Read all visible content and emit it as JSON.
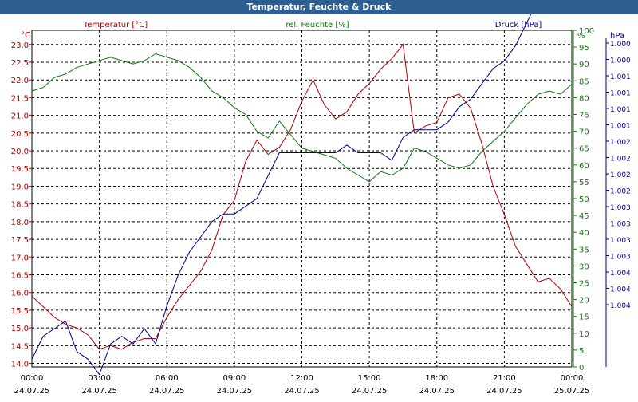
{
  "window": {
    "title": "Temperatur, Feuchte & Druck"
  },
  "colors": {
    "temperature": "#b00000",
    "humidity": "#0a7a0a",
    "pressure": "#000090",
    "grid": "#000000",
    "titlebar": "#2e5f93"
  },
  "chart_data": {
    "type": "line",
    "title": "Temperatur, Feuchte & Druck",
    "grid": true,
    "x_ticks": [
      {
        "time": "00:00",
        "date": "24.07.25"
      },
      {
        "time": "03:00",
        "date": "24.07.25"
      },
      {
        "time": "06:00",
        "date": "24.07.25"
      },
      {
        "time": "09:00",
        "date": "24.07.25"
      },
      {
        "time": "12:00",
        "date": "24.07.25"
      },
      {
        "time": "15:00",
        "date": "24.07.25"
      },
      {
        "time": "18:00",
        "date": "24.07.25"
      },
      {
        "time": "21:00",
        "date": "24.07.25"
      },
      {
        "time": "00:00",
        "date": "25.07.25"
      }
    ],
    "axes": {
      "temperature": {
        "label": "Temperatur [°C]",
        "unit": "°C",
        "range": [
          13.9,
          23.4
        ],
        "ticks": [
          "14.0",
          "14.5",
          "15.0",
          "15.5",
          "16.0",
          "16.5",
          "17.0",
          "17.5",
          "18.0",
          "18.5",
          "19.0",
          "19.5",
          "20.0",
          "20.5",
          "21.0",
          "21.5",
          "22.0",
          "22.5",
          "23.0"
        ]
      },
      "humidity": {
        "label": "rel. Feuchte [%]",
        "unit": "%",
        "range": [
          0,
          100
        ],
        "ticks": [
          "0",
          "5",
          "10",
          "15",
          "20",
          "25",
          "30",
          "35",
          "40",
          "45",
          "50",
          "55",
          "60",
          "65",
          "70",
          "75",
          "80",
          "85",
          "90",
          "95",
          "100"
        ]
      },
      "pressure": {
        "label": "Druck [hPa]",
        "unit": "hPa",
        "range": [
          1000.0,
          1004.4
        ],
        "ticks": [
          "1.000",
          "1.000",
          "1.001",
          "1.001",
          "1.001",
          "1.001",
          "1.002",
          "1.002",
          "1.002",
          "1.002",
          "1.003",
          "1.003",
          "1.003",
          "1.003",
          "1.004",
          "1.004",
          "1.004"
        ]
      }
    },
    "series": [
      {
        "name": "Temperatur [°C]",
        "axis": "temperature",
        "x_hours": [
          0,
          0.5,
          1,
          1.5,
          2,
          2.5,
          3,
          3.5,
          4,
          4.5,
          5,
          5.5,
          6,
          6.5,
          7,
          7.5,
          8,
          8.5,
          9,
          9.5,
          10,
          10.5,
          11,
          11.5,
          12,
          12.5,
          13,
          13.5,
          14,
          14.5,
          15,
          15.5,
          16,
          16.5,
          17,
          17.5,
          18,
          18.5,
          19,
          19.5,
          20,
          20.5,
          21,
          21.5,
          22,
          22.5,
          23,
          23.5,
          24
        ],
        "y": [
          15.9,
          15.6,
          15.3,
          15.1,
          15.0,
          14.8,
          14.4,
          14.5,
          14.4,
          14.6,
          14.7,
          14.7,
          15.3,
          15.8,
          16.2,
          16.6,
          17.2,
          18.2,
          18.6,
          19.7,
          20.3,
          19.9,
          20.1,
          20.6,
          21.4,
          22.0,
          21.3,
          20.9,
          21.1,
          21.6,
          21.9,
          22.3,
          22.6,
          23.0,
          20.5,
          20.7,
          20.8,
          21.5,
          21.6,
          21.2,
          20.2,
          19.0,
          18.2,
          17.3,
          16.8,
          16.3,
          16.4,
          16.1,
          15.6
        ]
      },
      {
        "name": "rel. Feuchte [%]",
        "axis": "humidity",
        "x_hours": [
          0,
          0.5,
          1,
          1.5,
          2,
          2.5,
          3,
          3.5,
          4,
          4.5,
          5,
          5.5,
          6,
          6.5,
          7,
          7.5,
          8,
          8.5,
          9,
          9.5,
          10,
          10.5,
          11,
          11.5,
          12,
          12.5,
          13,
          13.5,
          14,
          14.5,
          15,
          15.5,
          16,
          16.5,
          17,
          17.5,
          18,
          18.5,
          19,
          19.5,
          20,
          20.5,
          21,
          21.5,
          22,
          22.5,
          23,
          23.5,
          24
        ],
        "y": [
          82,
          83,
          86,
          87,
          89,
          90,
          91,
          92,
          91,
          90,
          91,
          93,
          92,
          91,
          89,
          86,
          82,
          80,
          77,
          75,
          70,
          68,
          73,
          69,
          65,
          64,
          63,
          62,
          59,
          57,
          55,
          58,
          57,
          59,
          65,
          64,
          62,
          60,
          59,
          60,
          64,
          67,
          70,
          74,
          78,
          81,
          82,
          81,
          84
        ]
      },
      {
        "name": "Druck [hPa]",
        "axis": "pressure",
        "x_hours": [
          0,
          0.5,
          1,
          1.5,
          2,
          2.5,
          3,
          3.5,
          4,
          4.5,
          5,
          5.5,
          6,
          6.5,
          7,
          7.5,
          8,
          8.5,
          9,
          9.5,
          10,
          10.5,
          11,
          11.5,
          12,
          12.5,
          13,
          13.5,
          14,
          14.5,
          15,
          15.5,
          16,
          16.5,
          17,
          17.5,
          18,
          18.5,
          19,
          19.5,
          20,
          20.5,
          21,
          21.5,
          22,
          22.5,
          23,
          23.5,
          24
        ],
        "y": [
          1000.1,
          1000.4,
          1000.5,
          1000.6,
          1000.2,
          1000.1,
          999.9,
          1000.3,
          1000.4,
          1000.3,
          1000.5,
          1000.3,
          1000.8,
          1001.2,
          1001.5,
          1001.7,
          1001.9,
          1002.0,
          1002.0,
          1002.1,
          1002.2,
          1002.5,
          1002.8,
          1002.8,
          1002.8,
          1002.8,
          1002.8,
          1002.8,
          1002.9,
          1002.8,
          1002.8,
          1002.8,
          1002.7,
          1003.0,
          1003.1,
          1003.1,
          1003.1,
          1003.2,
          1003.4,
          1003.5,
          1003.7,
          1003.9,
          1004.0,
          1004.2,
          1004.5,
          1004.8,
          1005.2,
          1005.4,
          1005.5
        ]
      }
    ]
  }
}
